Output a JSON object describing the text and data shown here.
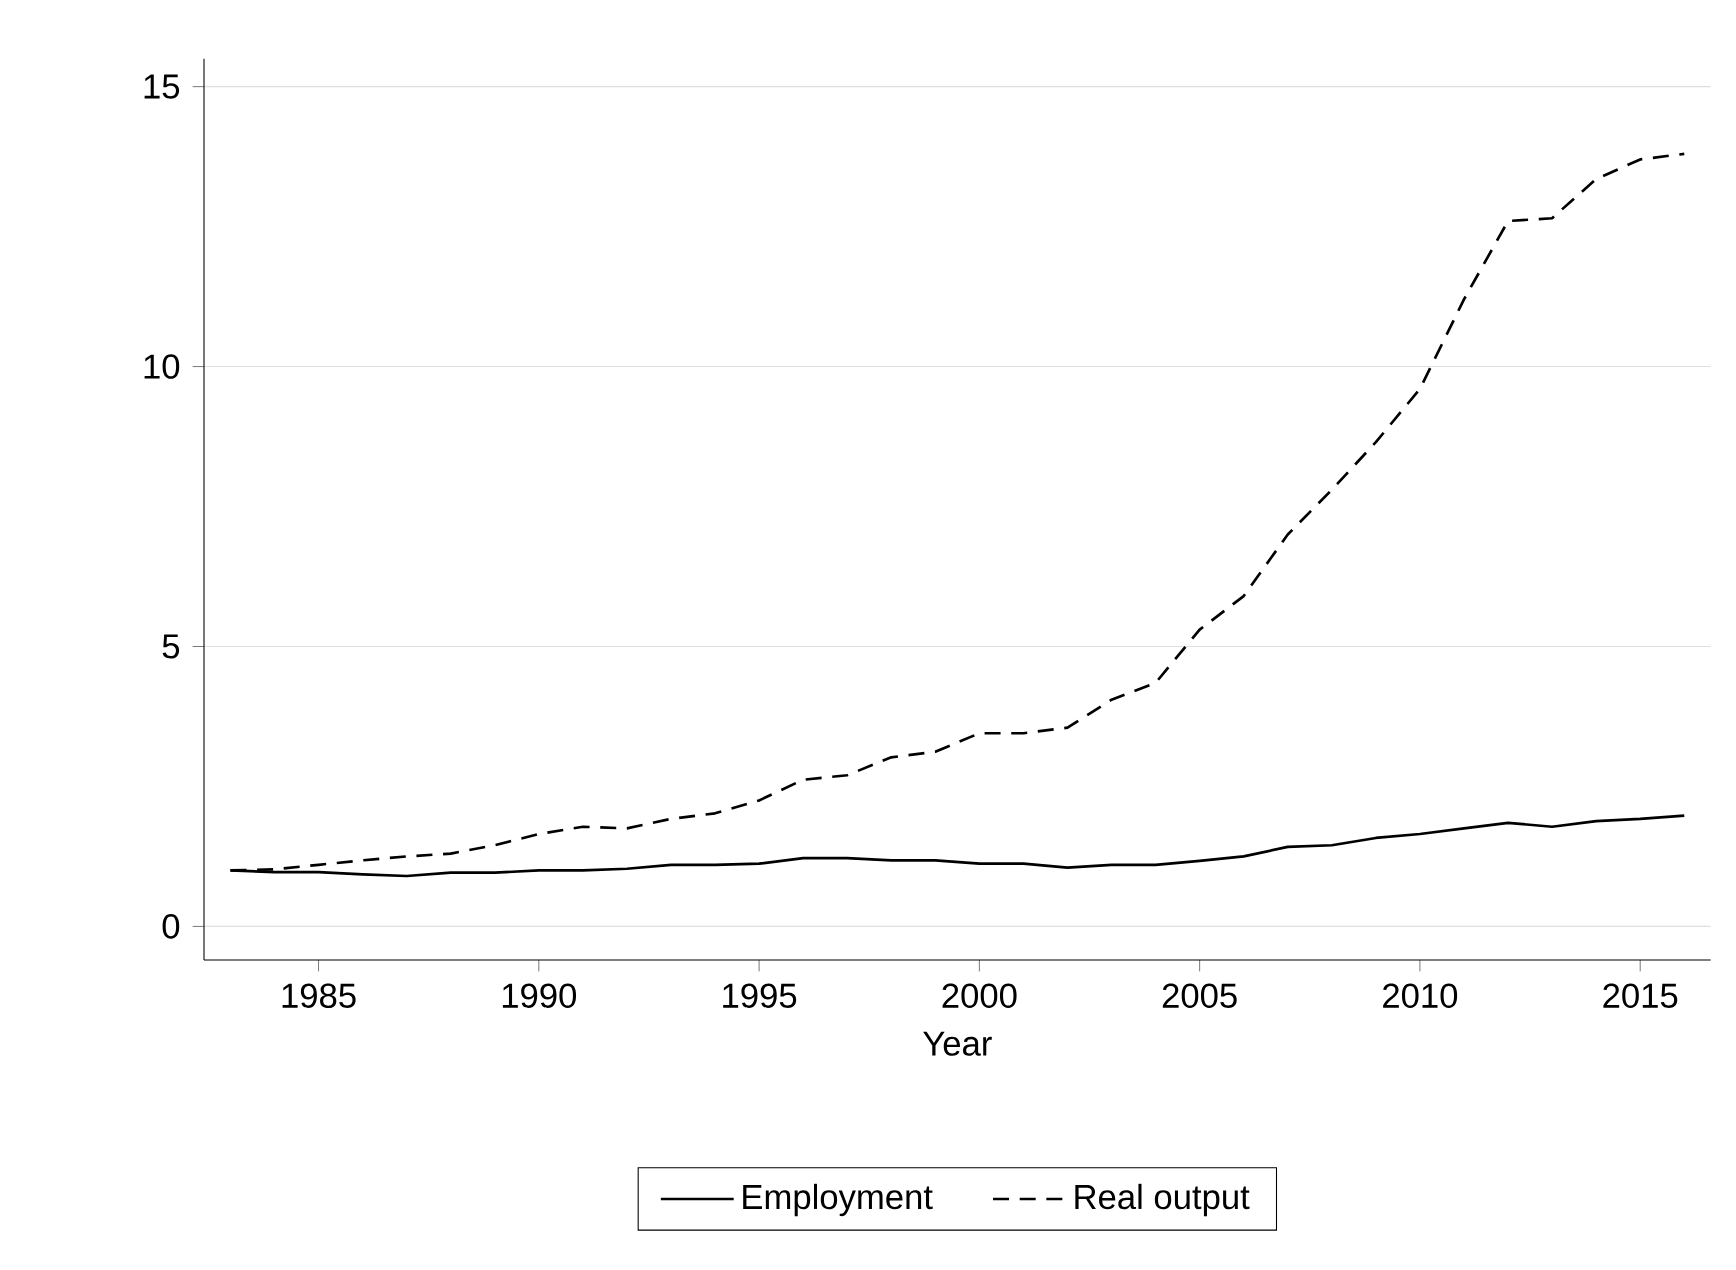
{
  "chart_data": {
    "type": "line",
    "xlabel": "Year",
    "x": [
      1983,
      1984,
      1985,
      1986,
      1987,
      1988,
      1989,
      1990,
      1991,
      1992,
      1993,
      1994,
      1995,
      1996,
      1997,
      1998,
      1999,
      2000,
      2001,
      2002,
      2003,
      2004,
      2005,
      2006,
      2007,
      2008,
      2009,
      2010,
      2011,
      2012,
      2013,
      2014,
      2015,
      2016
    ],
    "series": [
      {
        "name": "Employment",
        "color": "#000000",
        "line_style": "solid",
        "values": [
          1.0,
          0.97,
          0.97,
          0.93,
          0.9,
          0.96,
          0.96,
          1.0,
          1.0,
          1.03,
          1.1,
          1.1,
          1.12,
          1.22,
          1.22,
          1.18,
          1.18,
          1.12,
          1.12,
          1.05,
          1.1,
          1.1,
          1.17,
          1.25,
          1.42,
          1.45,
          1.58,
          1.65,
          1.75,
          1.85,
          1.78,
          1.88,
          1.92,
          1.98
        ]
      },
      {
        "name": "Real output",
        "color": "#000000",
        "line_style": "dashed",
        "values": [
          1.0,
          1.02,
          1.1,
          1.18,
          1.25,
          1.3,
          1.45,
          1.65,
          1.78,
          1.75,
          1.92,
          2.02,
          2.25,
          2.62,
          2.7,
          3.02,
          3.12,
          3.45,
          3.45,
          3.55,
          4.05,
          4.35,
          5.3,
          5.9,
          7.0,
          7.8,
          8.65,
          9.6,
          11.2,
          12.6,
          12.65,
          13.35,
          13.7,
          13.8
        ]
      }
    ],
    "xlim": [
      1982.4,
      2016.6
    ],
    "ylim": [
      -0.6,
      15.5
    ],
    "xticks": [
      1985,
      1990,
      1995,
      2000,
      2005,
      2010,
      2015
    ],
    "yticks": [
      0,
      5,
      10,
      15
    ],
    "grid": "y",
    "legend": "bottom",
    "marker": "none"
  }
}
